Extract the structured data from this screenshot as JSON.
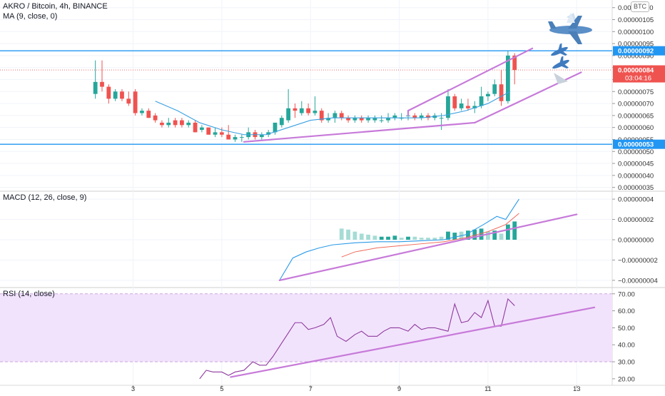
{
  "header": {
    "symbol_line": "AKRO / Bitcoin, 4h, BINANCE",
    "ma_label": "MA (9, close, 0)",
    "currency_badge": "BTC"
  },
  "price_axis": {
    "ticks": [
      "0.00000110",
      "0.00000105",
      "0.00000100",
      "0.00000095",
      "0.00000090",
      "0.00000085",
      "0.00000080",
      "0.00000075",
      "0.00000070",
      "0.00000065",
      "0.00000060",
      "0.00000055",
      "0.00000050",
      "0.00000045",
      "0.00000040",
      "0.00000035"
    ],
    "tick_values": [
      110,
      105,
      100,
      95,
      90,
      85,
      80,
      75,
      70,
      65,
      60,
      55,
      50,
      45,
      40,
      35
    ],
    "top_level_label": "0.00000092",
    "top_level_value": 92,
    "current_label": "0.00000084",
    "current_value": 84,
    "countdown": "03:04:16",
    "bottom_level_label": "0.00000053",
    "bottom_level_value": 53
  },
  "macd": {
    "label": "MACD (12, 26, close, 9)",
    "ticks": [
      "0.00000004",
      "0.00000002",
      "0.00000000",
      "−0.00000002",
      "−0.00000004"
    ],
    "tick_values": [
      4,
      2,
      0,
      -2,
      -4
    ]
  },
  "rsi": {
    "label": "RSI (14, close)",
    "ticks": [
      "70.00",
      "60.00",
      "50.00",
      "40.00",
      "30.00",
      "20.00"
    ],
    "tick_values": [
      70,
      60,
      50,
      40,
      30,
      20
    ]
  },
  "time_axis": {
    "labels": [
      "3",
      "5",
      "7",
      "9",
      "11",
      "13"
    ],
    "values": [
      3,
      5,
      7,
      9,
      11,
      13
    ]
  },
  "colors": {
    "bull": "#26a69a",
    "bear": "#ef5350",
    "level_line": "#2196f3",
    "trend_line": "#c77ad9",
    "ma_line": "#3aa0e0",
    "rsi_line": "#8e3a9e",
    "rsi_band": "#f2e3fc",
    "macd_line": "#2b9be8",
    "signal_line": "#ef6a5a"
  },
  "chart_data": [
    {
      "type": "candlestick",
      "name_hint": "price",
      "x_unit": "day",
      "candles": [
        {
          "t": 2.15,
          "o": 74,
          "h": 88,
          "l": 72,
          "c": 79
        },
        {
          "t": 2.3,
          "o": 79,
          "h": 88,
          "l": 75,
          "c": 77
        },
        {
          "t": 2.45,
          "o": 77,
          "h": 78,
          "l": 70,
          "c": 72
        },
        {
          "t": 2.6,
          "o": 72,
          "h": 76,
          "l": 71,
          "c": 75
        },
        {
          "t": 2.75,
          "o": 75,
          "h": 76,
          "l": 71,
          "c": 72
        },
        {
          "t": 2.9,
          "o": 72,
          "h": 75,
          "l": 69,
          "c": 70
        },
        {
          "t": 3.05,
          "o": 75,
          "h": 76,
          "l": 65,
          "c": 66
        },
        {
          "t": 3.2,
          "o": 66,
          "h": 68,
          "l": 65,
          "c": 67
        },
        {
          "t": 3.35,
          "o": 67,
          "h": 68,
          "l": 64,
          "c": 64
        },
        {
          "t": 3.5,
          "o": 65,
          "h": 66,
          "l": 62,
          "c": 63
        },
        {
          "t": 3.65,
          "o": 62,
          "h": 63,
          "l": 60,
          "c": 61
        },
        {
          "t": 3.8,
          "o": 61,
          "h": 64,
          "l": 60,
          "c": 62
        },
        {
          "t": 3.95,
          "o": 63,
          "h": 64,
          "l": 60,
          "c": 61
        },
        {
          "t": 4.1,
          "o": 63,
          "h": 64,
          "l": 60,
          "c": 61
        },
        {
          "t": 4.25,
          "o": 61,
          "h": 63,
          "l": 60,
          "c": 62
        },
        {
          "t": 4.4,
          "o": 62,
          "h": 63,
          "l": 58,
          "c": 58
        },
        {
          "t": 4.55,
          "o": 59,
          "h": 61,
          "l": 58,
          "c": 60
        },
        {
          "t": 4.7,
          "o": 60,
          "h": 60,
          "l": 57,
          "c": 57
        },
        {
          "t": 4.85,
          "o": 57,
          "h": 60,
          "l": 56,
          "c": 58
        },
        {
          "t": 5.0,
          "o": 58,
          "h": 60,
          "l": 56,
          "c": 57
        },
        {
          "t": 5.15,
          "o": 57,
          "h": 61,
          "l": 55,
          "c": 55
        },
        {
          "t": 5.3,
          "o": 55,
          "h": 57,
          "l": 54,
          "c": 56
        },
        {
          "t": 5.45,
          "o": 56,
          "h": 57,
          "l": 54,
          "c": 56
        },
        {
          "t": 5.6,
          "o": 56,
          "h": 60,
          "l": 55,
          "c": 58
        },
        {
          "t": 5.75,
          "o": 58,
          "h": 59,
          "l": 55,
          "c": 56
        },
        {
          "t": 5.9,
          "o": 56,
          "h": 58,
          "l": 55,
          "c": 57
        },
        {
          "t": 6.05,
          "o": 57,
          "h": 59,
          "l": 56,
          "c": 58
        },
        {
          "t": 6.2,
          "o": 58,
          "h": 62,
          "l": 57,
          "c": 62
        },
        {
          "t": 6.35,
          "o": 61,
          "h": 65,
          "l": 60,
          "c": 64
        },
        {
          "t": 6.5,
          "o": 63,
          "h": 76,
          "l": 62,
          "c": 68
        },
        {
          "t": 6.65,
          "o": 68,
          "h": 70,
          "l": 64,
          "c": 67
        },
        {
          "t": 6.8,
          "o": 66,
          "h": 71,
          "l": 65,
          "c": 68
        },
        {
          "t": 6.95,
          "o": 68,
          "h": 70,
          "l": 65,
          "c": 66
        },
        {
          "t": 7.1,
          "o": 66,
          "h": 73,
          "l": 65,
          "c": 67
        },
        {
          "t": 7.25,
          "o": 67,
          "h": 68,
          "l": 62,
          "c": 63
        },
        {
          "t": 7.4,
          "o": 63,
          "h": 66,
          "l": 62,
          "c": 64
        },
        {
          "t": 7.55,
          "o": 64,
          "h": 67,
          "l": 62,
          "c": 66
        },
        {
          "t": 7.7,
          "o": 66,
          "h": 67,
          "l": 63,
          "c": 64
        },
        {
          "t": 7.85,
          "o": 64,
          "h": 65,
          "l": 62,
          "c": 63
        },
        {
          "t": 8.0,
          "o": 63,
          "h": 65,
          "l": 62,
          "c": 64
        },
        {
          "t": 8.15,
          "o": 64,
          "h": 65,
          "l": 62,
          "c": 63
        },
        {
          "t": 8.3,
          "o": 63,
          "h": 65,
          "l": 62,
          "c": 64
        },
        {
          "t": 8.45,
          "o": 63,
          "h": 65,
          "l": 62,
          "c": 64
        },
        {
          "t": 8.6,
          "o": 63,
          "h": 65,
          "l": 62,
          "c": 63
        },
        {
          "t": 8.75,
          "o": 63,
          "h": 66,
          "l": 62,
          "c": 64
        },
        {
          "t": 8.9,
          "o": 64,
          "h": 66,
          "l": 63,
          "c": 65
        },
        {
          "t": 9.05,
          "o": 64,
          "h": 66,
          "l": 63,
          "c": 64
        },
        {
          "t": 9.2,
          "o": 65,
          "h": 67,
          "l": 63,
          "c": 65
        },
        {
          "t": 9.35,
          "o": 65,
          "h": 66,
          "l": 63,
          "c": 64
        },
        {
          "t": 9.5,
          "o": 64,
          "h": 66,
          "l": 63,
          "c": 65
        },
        {
          "t": 9.65,
          "o": 65,
          "h": 66,
          "l": 63,
          "c": 64
        },
        {
          "t": 9.8,
          "o": 64,
          "h": 66,
          "l": 63,
          "c": 65
        },
        {
          "t": 9.95,
          "o": 64,
          "h": 66,
          "l": 59,
          "c": 64
        },
        {
          "t": 10.1,
          "o": 64,
          "h": 76,
          "l": 63,
          "c": 73
        },
        {
          "t": 10.25,
          "o": 73,
          "h": 74,
          "l": 67,
          "c": 68
        },
        {
          "t": 10.4,
          "o": 68,
          "h": 72,
          "l": 67,
          "c": 70
        },
        {
          "t": 10.55,
          "o": 69,
          "h": 72,
          "l": 67,
          "c": 68
        },
        {
          "t": 10.7,
          "o": 68,
          "h": 71,
          "l": 66,
          "c": 69
        },
        {
          "t": 10.85,
          "o": 69,
          "h": 77,
          "l": 68,
          "c": 73
        },
        {
          "t": 11.0,
          "o": 73,
          "h": 75,
          "l": 71,
          "c": 74
        },
        {
          "t": 11.15,
          "o": 74,
          "h": 80,
          "l": 73,
          "c": 78
        },
        {
          "t": 11.3,
          "o": 78,
          "h": 84,
          "l": 69,
          "c": 71
        },
        {
          "t": 11.45,
          "o": 71,
          "h": 92,
          "l": 70,
          "c": 90
        },
        {
          "t": 11.6,
          "o": 90,
          "h": 91,
          "l": 78,
          "c": 84
        }
      ],
      "moving_average": {
        "period": 9,
        "x": [
          3.5,
          4.0,
          4.5,
          5.0,
          5.5,
          6.0,
          6.5,
          7.0,
          7.5,
          8.0,
          8.5,
          9.0,
          9.5,
          10.0,
          10.5,
          11.0,
          11.5
        ],
        "y": [
          71,
          67,
          62,
          59,
          57,
          57,
          60,
          63,
          64,
          64,
          64,
          64,
          64,
          65,
          67,
          70,
          75
        ]
      },
      "horizontal_levels": [
        92,
        53
      ],
      "trend_lines": [
        {
          "x": [
            5.5,
            10.7
          ],
          "y": [
            54,
            62
          ]
        },
        {
          "x": [
            10.7,
            13.1
          ],
          "y": [
            62,
            83
          ]
        },
        {
          "x": [
            9.2,
            12.0
          ],
          "y": [
            67,
            93
          ]
        },
        {
          "x": [
            9.2,
            9.2
          ],
          "y": [
            65,
            67
          ]
        }
      ],
      "xlim": [
        0,
        13.8
      ],
      "ylim": [
        34,
        112
      ]
    },
    {
      "type": "bar",
      "name_hint": "macd",
      "histogram": {
        "x": [
          7.7,
          7.85,
          8.0,
          8.15,
          8.3,
          8.45,
          8.6,
          8.75,
          8.9,
          9.05,
          9.2,
          9.35,
          9.5,
          9.65,
          9.8,
          9.95,
          10.1,
          10.25,
          10.4,
          10.55,
          10.7,
          10.85,
          11.0,
          11.15,
          11.3,
          11.45,
          11.6
        ],
        "y": [
          1.1,
          1.0,
          0.8,
          0.6,
          0.5,
          0.4,
          0.3,
          0.3,
          0.4,
          0.2,
          0.3,
          0.3,
          0.2,
          0.2,
          0.2,
          0.3,
          0.8,
          0.7,
          0.8,
          0.9,
          1.0,
          1.1,
          0.8,
          0.9,
          0.6,
          1.5,
          1.8
        ],
        "bull": [
          false,
          false,
          false,
          false,
          false,
          false,
          true,
          true,
          true,
          false,
          true,
          false,
          false,
          false,
          false,
          false,
          true,
          true,
          false,
          true,
          true,
          true,
          false,
          true,
          false,
          true,
          true
        ]
      },
      "macd_line": {
        "x": [
          6.3,
          6.6,
          6.9,
          7.2,
          7.5,
          8.0,
          8.5,
          9.0,
          9.5,
          10.0,
          10.5,
          10.9,
          11.2,
          11.4,
          11.7
        ],
        "y": [
          -4.0,
          -1.8,
          -1.2,
          -0.8,
          -0.5,
          -0.3,
          -0.2,
          -0.2,
          -0.1,
          0.0,
          0.5,
          1.5,
          2.3,
          2.0,
          4.0
        ]
      },
      "signal_line": {
        "x": [
          7.7,
          8.0,
          8.5,
          9.0,
          9.5,
          10.0,
          10.5,
          11.0,
          11.4,
          11.7
        ],
        "y": [
          -1.7,
          -1.2,
          -0.8,
          -0.6,
          -0.4,
          -0.2,
          0.2,
          0.8,
          1.5,
          2.6
        ]
      },
      "trend_line": {
        "x": [
          6.3,
          13.0
        ],
        "y": [
          -4.0,
          2.5
        ]
      },
      "ylim": [
        -4.5,
        4.5
      ]
    },
    {
      "type": "line",
      "name_hint": "rsi",
      "x": [
        4.5,
        4.65,
        4.8,
        5.0,
        5.15,
        5.3,
        5.5,
        5.7,
        5.85,
        6.0,
        6.15,
        6.35,
        6.5,
        6.65,
        6.8,
        6.95,
        7.1,
        7.3,
        7.45,
        7.6,
        7.8,
        8.0,
        8.15,
        8.3,
        8.5,
        8.65,
        8.8,
        9.0,
        9.2,
        9.35,
        9.5,
        9.65,
        9.8,
        9.95,
        10.1,
        10.25,
        10.4,
        10.55,
        10.7,
        10.85,
        11.0,
        11.15,
        11.3,
        11.45,
        11.6
      ],
      "y": [
        20,
        25,
        24,
        24,
        22,
        24,
        25,
        30,
        28,
        28,
        33,
        41,
        47,
        53,
        53,
        49,
        50,
        52,
        56,
        45,
        42,
        46,
        48,
        45,
        45,
        48,
        50,
        50,
        48,
        52,
        49,
        50,
        50,
        49,
        48,
        64,
        53,
        54,
        59,
        56,
        66,
        51,
        51,
        67,
        63
      ],
      "band": [
        30,
        70
      ],
      "trend_line": {
        "x": [
          5.2,
          13.4
        ],
        "y": [
          21,
          62
        ]
      },
      "ylim": [
        17,
        72
      ]
    }
  ]
}
